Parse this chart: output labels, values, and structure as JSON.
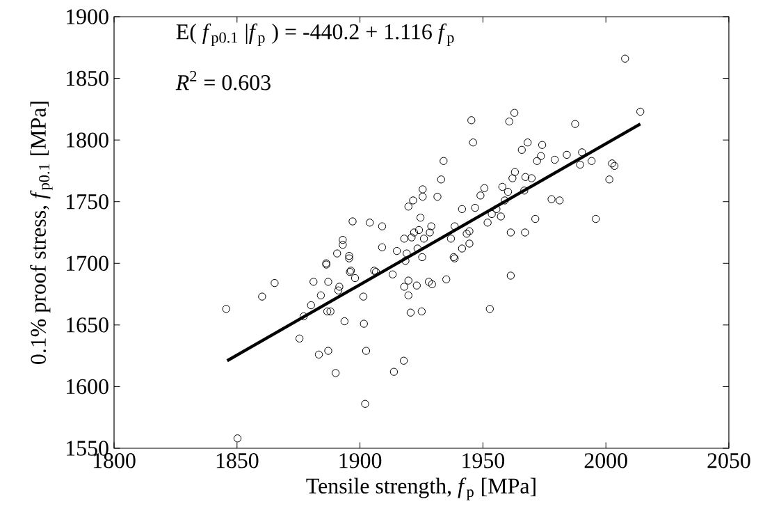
{
  "chart_data": {
    "type": "scatter",
    "xlabel": "Tensile strength, *f*$_{p}$ [MPa]",
    "ylabel": "0.1% proof stress, *f*$_{p0.1}$  [MPa]",
    "annotations": [
      "E( *f*$_{p0.1}$ |*f*$_{p}$ ) = -440.2 + 1.116 *f*$_{p}$",
      "*R*$^{2}$ =  0.603"
    ],
    "xlim": [
      1800,
      2050
    ],
    "ylim": [
      1550,
      1900
    ],
    "xticks": [
      1800,
      1850,
      1900,
      1950,
      2000,
      2050
    ],
    "yticks": [
      1550,
      1600,
      1650,
      1700,
      1750,
      1800,
      1850,
      1900
    ],
    "grid": false,
    "marker": "circle",
    "series": [
      {
        "color": "#000000",
        "x": [
          1934,
          1933,
          1925.5,
          1925.5,
          1931.5,
          1921.6,
          1919.7,
          1924.6,
          1897,
          1904,
          1909,
          1929,
          1918,
          1922,
          1924,
          1926,
          1928.4,
          1921,
          1893,
          1893,
          1909,
          1915,
          1919,
          1923.4,
          1925.3,
          1890.7,
          1895.6,
          1895.6,
          1886.3,
          1918.5,
          1937,
          1938.5,
          1896.3,
          1913.3,
          1905.8,
          1845.6,
          1860.2,
          1865.3,
          1881.1,
          1887.1,
          1886.3,
          1895.9,
          1898,
          1891.6,
          1891.2,
          1884.1,
          1880.1,
          1877.1,
          1886.7,
          1888,
          1901.4,
          1893.7,
          1901.6,
          1875.4,
          1883.3,
          1887.1,
          1902.5,
          1890.1,
          1917.8,
          1913.8,
          1902.1,
          1850.2,
          1918,
          1919.7,
          1919.7,
          1923.1,
          1928,
          1929.3,
          1935.1,
          1920.6,
          1925.1,
          1906.5,
          2007.8,
          2014,
          1945.3,
          1962.8,
          1960.7,
          1987.5,
          1946,
          1968.2,
          1974.1,
          1965.8,
          1973.6,
          1972,
          1984.1,
          1990.3,
          1979.2,
          1989.5,
          1994.2,
          2002.5,
          2003.5,
          2001.4,
          1950.6,
          1949,
          1957.9,
          1963,
          1962,
          1967.3,
          1969.8,
          1960.2,
          1966.8,
          1958.9,
          1977.9,
          1981.2,
          1941.5,
          1946.8,
          1955.5,
          1953.6,
          1957.3,
          1951.9,
          1971.3,
          1995.9,
          1938.5,
          1944.5,
          1943.4,
          1961.3,
          1967.1,
          1944.5,
          1941.5,
          1938.1,
          1961.3,
          1952.8
        ],
        "values": [
          1783,
          1768,
          1760,
          1754,
          1754,
          1751,
          1746,
          1737,
          1734,
          1733,
          1730,
          1730,
          1720,
          1725,
          1727,
          1720,
          1725,
          1721,
          1719,
          1715,
          1713,
          1710,
          1708,
          1712,
          1705,
          1708,
          1706,
          1704,
          1700,
          1702,
          1720,
          1704,
          1694,
          1691,
          1694,
          1663,
          1673,
          1684,
          1685,
          1685,
          1699,
          1693,
          1688,
          1681,
          1678,
          1674,
          1666,
          1657,
          1661,
          1661,
          1673,
          1653,
          1651,
          1639,
          1626,
          1629,
          1629,
          1611,
          1621,
          1612,
          1586,
          1558,
          1681,
          1686,
          1674,
          1682,
          1685,
          1683,
          1687,
          1660,
          1661,
          1693,
          1866,
          1823,
          1816,
          1822,
          1815,
          1813,
          1798,
          1798,
          1796,
          1792,
          1787,
          1783,
          1788,
          1790,
          1784,
          1780,
          1783,
          1781,
          1779,
          1768,
          1761,
          1755,
          1762,
          1774,
          1769,
          1770,
          1769,
          1758,
          1759,
          1751,
          1752,
          1751,
          1744,
          1745,
          1744,
          1740,
          1738,
          1733,
          1736,
          1736,
          1730,
          1726,
          1724,
          1725,
          1725,
          1716,
          1712,
          1705,
          1690,
          1663
        ]
      },
      {
        "type": "line",
        "color": "#000000",
        "marker": "none",
        "x": [
          1846,
          2014
        ],
        "values": [
          1621,
          1813
        ]
      }
    ]
  }
}
